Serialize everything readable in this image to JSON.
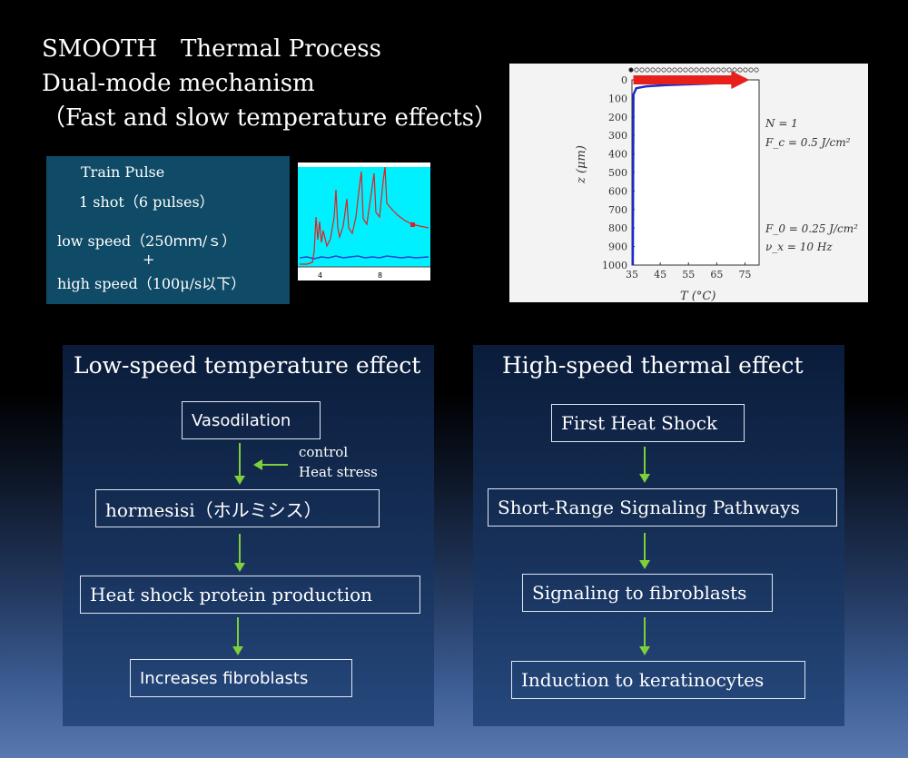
{
  "title": {
    "line1": "SMOOTH　Thermal Process",
    "line2": "Dual-mode mechanism",
    "line3": "（Fast and slow temperature effects）"
  },
  "pulse_box": {
    "line1": "Train Pulse",
    "line2": "1 shot（6 pulses）",
    "line3": "low speed（250ｍｍ/ｓ）",
    "plus": "+",
    "line4": "high speed（100μ/s以下）"
  },
  "waveform": {
    "tick_left": "4",
    "tick_right": "8",
    "colors": {
      "background": "#00f0ff",
      "trace": "#e02020",
      "baseline": "#2040d0"
    }
  },
  "chart_data": {
    "type": "line",
    "xlabel": "T (°C)",
    "ylabel": "z (μm)",
    "xlim": [
      35,
      80
    ],
    "ylim": [
      1000,
      0
    ],
    "x_ticks": [
      35,
      45,
      55,
      65,
      75
    ],
    "y_ticks": [
      0,
      100,
      200,
      300,
      400,
      500,
      600,
      700,
      800,
      900,
      1000
    ],
    "series": [
      {
        "x": [
          35.3,
          35.5,
          36.5,
          40,
          47,
          55,
          62,
          66.5
        ],
        "y": [
          1000,
          80,
          45,
          35,
          28,
          24,
          20,
          17
        ]
      }
    ],
    "arrow": {
      "from_x": 35.5,
      "to_x": 74,
      "y": 0
    },
    "annotations": {
      "N": "N = 1",
      "Fc": "F_c = 0.5 J/cm²",
      "F0": "F_0 = 0.25 J/cm²",
      "nu": "ν_x = 10 Hz"
    },
    "pulse_indicators": {
      "total": 24,
      "filled": 1
    }
  },
  "left_panel": {
    "title": "Low-speed temperature effect",
    "nodes": [
      "Vasodilation",
      "hormesisi（ホルミシス）",
      "Heat shock protein production",
      "Increases fibroblasts"
    ],
    "note_line1": "control",
    "note_line2": "Heat stress"
  },
  "right_panel": {
    "title": "High-speed thermal effect",
    "nodes": [
      "First Heat Shock",
      "Short-Range Signaling Pathways",
      "Signaling to fibroblasts",
      "Induction to keratinocytes"
    ]
  },
  "colors": {
    "arrow": "#7ed03a",
    "pulse_box": "#0f4a66",
    "panel_top": "#0a1c3a",
    "panel_bottom": "#26497e",
    "curve": "#1c2cc8",
    "big_arrow": "#e8201c"
  }
}
